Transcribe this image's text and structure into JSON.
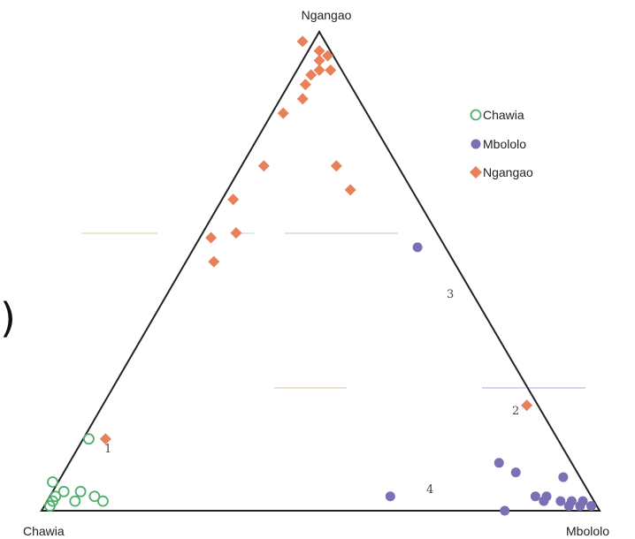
{
  "chart_data": {
    "type": "scatter",
    "subtype": "ternary",
    "title": "",
    "vertices": {
      "top": "Ngangao",
      "left": "Chawia",
      "right": "Mbololo"
    },
    "legend": {
      "placement": "top-right",
      "entries": [
        {
          "name": "Chawia",
          "marker": "open-circle",
          "color": "#4caf6a"
        },
        {
          "name": "Mbololo",
          "marker": "filled-circle",
          "color": "#7b6fb5"
        },
        {
          "name": "Ngangao",
          "marker": "diamond",
          "color": "#e8805a"
        }
      ]
    },
    "series": [
      {
        "name": "Chawia",
        "points": [
          {
            "a": 0.93,
            "b": 0.02
          },
          {
            "a": 0.94,
            "b": 0.04
          },
          {
            "a": 0.95,
            "b": 0.06
          },
          {
            "a": 0.97,
            "b": 0.02
          },
          {
            "a": 0.91,
            "b": 0.04
          },
          {
            "a": 0.89,
            "b": 0.03
          },
          {
            "a": 0.98,
            "b": 0.01
          },
          {
            "a": 0.96,
            "b": 0.03
          },
          {
            "a": 0.88,
            "b": 0.02
          },
          {
            "a": 0.84,
            "b": 0.15
          }
        ]
      },
      {
        "name": "Mbololo",
        "points": [
          {
            "a": 0.01,
            "b": 0.01
          },
          {
            "a": 0.02,
            "b": 0.02
          },
          {
            "a": 0.03,
            "b": 0.01
          },
          {
            "a": 0.04,
            "b": 0.02
          },
          {
            "a": 0.05,
            "b": 0.01
          },
          {
            "a": 0.06,
            "b": 0.02
          },
          {
            "a": 0.08,
            "b": 0.03
          },
          {
            "a": 0.09,
            "b": 0.02
          },
          {
            "a": 0.1,
            "b": 0.03
          },
          {
            "a": 0.03,
            "b": 0.07
          },
          {
            "a": 0.11,
            "b": 0.08
          },
          {
            "a": 0.13,
            "b": 0.1
          },
          {
            "a": 0.17,
            "b": 0.0
          },
          {
            "a": 0.36,
            "b": 0.03
          },
          {
            "a": 0.05,
            "b": 0.55
          }
        ]
      },
      {
        "name": "Ngangao",
        "points": [
          {
            "a": 0.04,
            "b": 0.98
          },
          {
            "a": 0.02,
            "b": 0.96
          },
          {
            "a": 0.01,
            "b": 0.95
          },
          {
            "a": 0.03,
            "b": 0.94
          },
          {
            "a": 0.04,
            "b": 0.92
          },
          {
            "a": 0.02,
            "b": 0.92
          },
          {
            "a": 0.06,
            "b": 0.91
          },
          {
            "a": 0.1,
            "b": 0.86
          },
          {
            "a": 0.08,
            "b": 0.89
          },
          {
            "a": 0.15,
            "b": 0.83
          },
          {
            "a": 0.11,
            "b": 0.72
          },
          {
            "a": 0.24,
            "b": 0.72
          },
          {
            "a": 0.33,
            "b": 0.65
          },
          {
            "a": 0.11,
            "b": 0.67
          },
          {
            "a": 0.36,
            "b": 0.58
          },
          {
            "a": 0.41,
            "b": 0.57
          },
          {
            "a": 0.43,
            "b": 0.52
          },
          {
            "a": 0.81,
            "b": 0.15
          },
          {
            "a": 0.02,
            "b": 0.22
          }
        ]
      }
    ],
    "annotations": [
      "1",
      "2",
      "3",
      "4"
    ]
  },
  "decor": {
    "left_bracket": ")",
    "line_color": "#222222"
  }
}
